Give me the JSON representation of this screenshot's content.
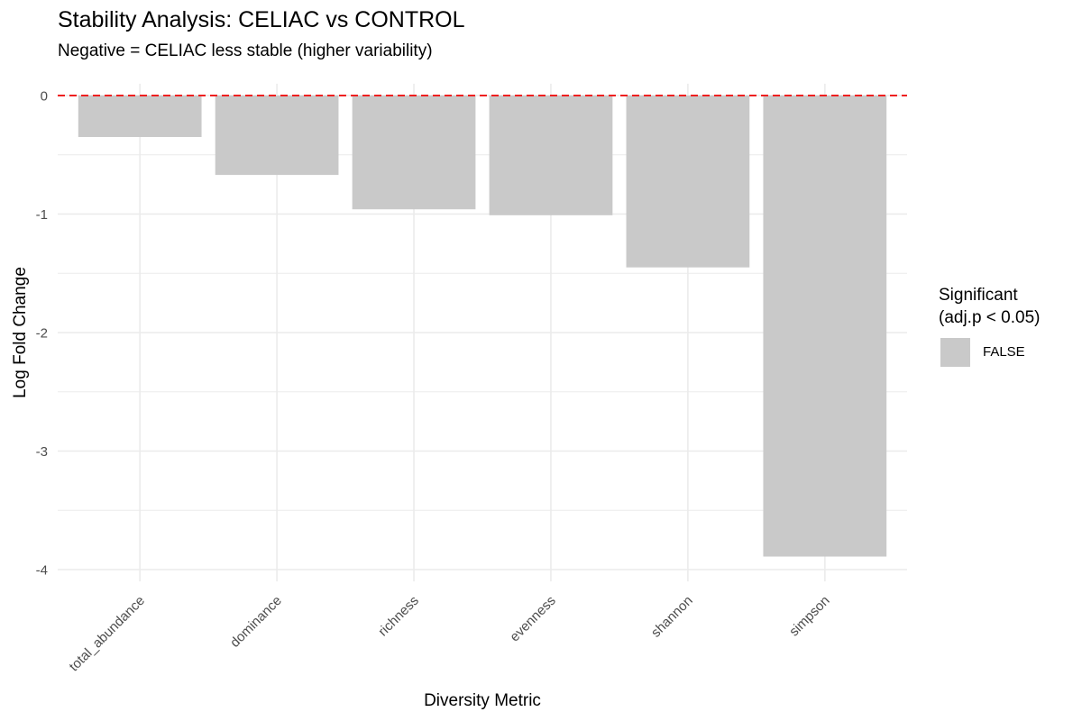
{
  "chart_data": {
    "type": "bar",
    "title": "Stability Analysis: CELIAC vs CONTROL",
    "subtitle": "Negative = CELIAC less stable (higher variability)",
    "xlabel": "Diversity Metric",
    "ylabel": "Log Fold Change",
    "categories": [
      "total_abundance",
      "dominance",
      "richness",
      "evenness",
      "shannon",
      "simpson"
    ],
    "values": [
      -0.35,
      -0.67,
      -0.96,
      -1.01,
      -1.45,
      -3.89
    ],
    "ylim": [
      -4.1,
      0.1
    ],
    "yticks": [
      0,
      -1,
      -2,
      -3,
      -4
    ],
    "ytick_labels": [
      "0",
      "-1",
      "-2",
      "-3",
      "-4"
    ],
    "reference_line": {
      "y": 0,
      "color": "#ee2020",
      "style": "dashed"
    },
    "grid": true,
    "legend": {
      "title_lines": [
        "Significant",
        "(adj.p < 0.05)"
      ],
      "entries": [
        {
          "label": "FALSE",
          "color": "#c9c9c9"
        }
      ],
      "position": "right"
    },
    "bar_color": "#c9c9c9",
    "grid_color": "#ebebeb"
  }
}
